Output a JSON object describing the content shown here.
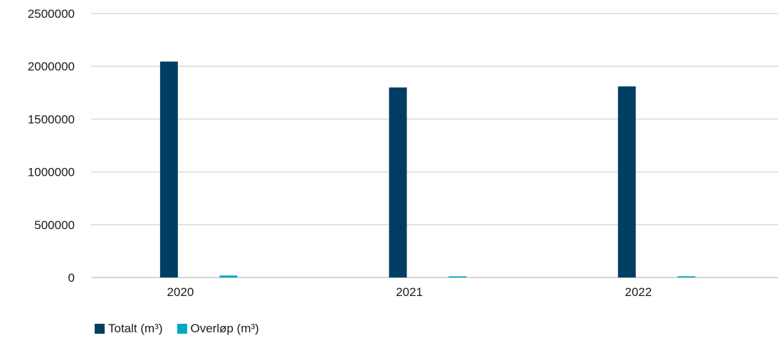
{
  "chart_data": {
    "type": "bar",
    "categories": [
      "2020",
      "2021",
      "2022"
    ],
    "series": [
      {
        "name": "Totalt (m³)",
        "values": [
          2045000,
          1800000,
          1810000
        ],
        "color": "#003f63"
      },
      {
        "name": "Overløp (m³)",
        "values": [
          19000,
          11000,
          12000
        ],
        "color": "#00a9bf"
      }
    ],
    "ylim": [
      0,
      2500000
    ],
    "yticks": [
      "0",
      "500000",
      "1000000",
      "1500000",
      "2000000",
      "2500000"
    ],
    "grid": true,
    "legend_position": "bottom-left",
    "title": "",
    "xlabel": "",
    "ylabel": ""
  }
}
